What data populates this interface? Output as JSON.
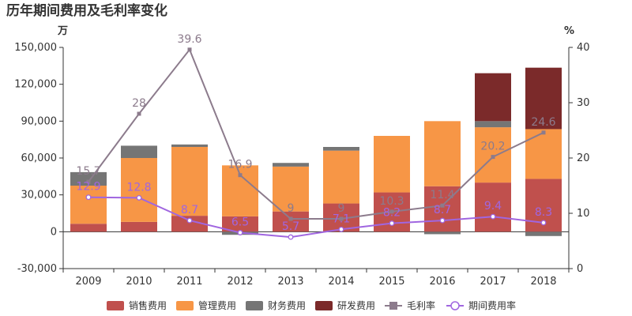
{
  "chart_data": {
    "type": "bar+line",
    "title": "历年期间费用及毛利率变化",
    "left_unit": "万",
    "right_unit": "%",
    "categories": [
      "2009",
      "2010",
      "2011",
      "2012",
      "2013",
      "2014",
      "2015",
      "2016",
      "2017",
      "2018"
    ],
    "y_left": {
      "min": -30000,
      "max": 150000,
      "ticks": [
        -30000,
        0,
        30000,
        60000,
        90000,
        120000,
        150000
      ],
      "tick_labels": [
        "-30,000",
        "0",
        "30,000",
        "60,000",
        "90,000",
        "120,000",
        "150,000"
      ]
    },
    "y_right": {
      "min": 0,
      "max": 40,
      "ticks": [
        0,
        10,
        20,
        30,
        40
      ],
      "tick_labels": [
        "0",
        "10",
        "20",
        "30",
        "40"
      ]
    },
    "bar_series": [
      {
        "name": "销售费用",
        "color": "#c0504d",
        "values": [
          6500,
          8000,
          13000,
          12500,
          16500,
          23000,
          32000,
          37000,
          40000,
          43000
        ]
      },
      {
        "name": "管理费用",
        "color": "#f79646",
        "values": [
          31000,
          52000,
          56000,
          41500,
          36500,
          43000,
          46000,
          53000,
          45000,
          40500
        ]
      },
      {
        "name": "财务费用",
        "color": "#757575",
        "values": [
          11000,
          10000,
          2000,
          -2500,
          3000,
          3000,
          0,
          -2000,
          5000,
          -3500
        ]
      },
      {
        "name": "研发费用",
        "color": "#7b2a2a",
        "values": [
          0,
          0,
          0,
          0,
          0,
          0,
          0,
          0,
          39000,
          50000
        ]
      }
    ],
    "line_series": [
      {
        "name": "毛利率",
        "color": "#8c7b8c",
        "values": [
          15.7,
          28,
          39.6,
          16.9,
          9,
          9,
          10.3,
          11.4,
          20.2,
          24.6
        ],
        "labels": [
          "15.7",
          "28",
          "39.6",
          "16.9",
          "9",
          "9",
          "10.3",
          "11.4",
          "20.2",
          "24.6"
        ]
      },
      {
        "name": "期间费用率",
        "color": "#a066e0",
        "values": [
          12.9,
          12.8,
          8.7,
          6.5,
          5.7,
          7.1,
          8.2,
          8.7,
          9.4,
          8.3
        ],
        "labels": [
          "12.9",
          "12.8",
          "8.7",
          "6.5",
          "5.7",
          "7.1",
          "8.2",
          "8.7",
          "9.4",
          "8.3"
        ]
      }
    ],
    "legend_position": "bottom"
  }
}
